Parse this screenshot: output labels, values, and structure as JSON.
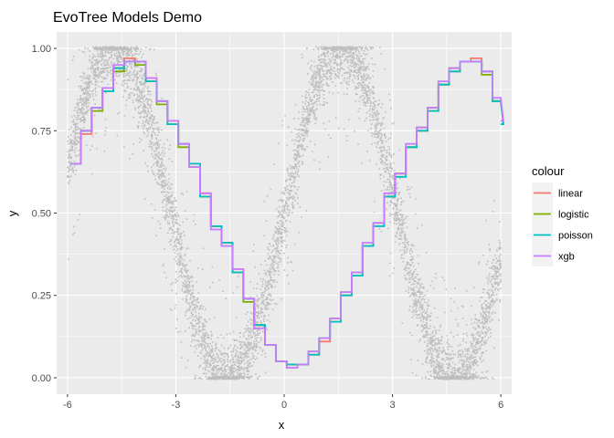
{
  "chart_data": {
    "type": "line",
    "title": "EvoTree Models Demo",
    "xlabel": "x",
    "ylabel": "y",
    "xlim": [
      -6.3,
      6.3
    ],
    "ylim": [
      -0.05,
      1.05
    ],
    "x_ticks": [
      -6,
      -3,
      0,
      3,
      6
    ],
    "x_tick_labels": [
      "-6",
      "-3",
      "0",
      "3",
      "6"
    ],
    "y_ticks": [
      0,
      0.25,
      0.5,
      0.75,
      1.0
    ],
    "y_tick_labels": [
      "0.00",
      "0.25",
      "0.50",
      "0.75",
      "1.00"
    ],
    "grid": true,
    "legend": {
      "title": "colour",
      "position": "right"
    },
    "scatter_color": "#bebebe",
    "panel_background": "#ebebeb",
    "x": [
      -5.93,
      -5.63,
      -5.33,
      -5.03,
      -4.73,
      -4.43,
      -4.13,
      -3.83,
      -3.53,
      -3.23,
      -2.93,
      -2.63,
      -2.33,
      -2.03,
      -1.73,
      -1.43,
      -1.13,
      -0.83,
      -0.53,
      -0.23,
      0.07,
      0.37,
      0.67,
      0.97,
      1.27,
      1.57,
      1.87,
      2.17,
      2.47,
      2.77,
      3.07,
      3.37,
      3.67,
      3.97,
      4.27,
      4.57,
      4.87,
      5.17,
      5.47,
      5.77,
      6.07
    ],
    "series": [
      {
        "name": "linear",
        "color": "#f8766d",
        "values": [
          0.65,
          0.74,
          0.82,
          0.88,
          0.94,
          0.97,
          0.96,
          0.91,
          0.84,
          0.78,
          0.71,
          0.65,
          0.56,
          0.46,
          0.41,
          0.33,
          0.24,
          0.16,
          0.1,
          0.05,
          0.03,
          0.04,
          0.07,
          0.11,
          0.17,
          0.25,
          0.31,
          0.4,
          0.46,
          0.55,
          0.62,
          0.7,
          0.75,
          0.81,
          0.89,
          0.93,
          0.96,
          0.97,
          0.93,
          0.84,
          0.78
        ]
      },
      {
        "name": "logistic",
        "color": "#7cae00",
        "values": [
          0.65,
          0.75,
          0.81,
          0.87,
          0.93,
          0.96,
          0.95,
          0.9,
          0.83,
          0.77,
          0.7,
          0.64,
          0.55,
          0.46,
          0.4,
          0.32,
          0.23,
          0.16,
          0.1,
          0.05,
          0.04,
          0.04,
          0.08,
          0.12,
          0.18,
          0.26,
          0.32,
          0.4,
          0.47,
          0.55,
          0.62,
          0.7,
          0.76,
          0.82,
          0.89,
          0.94,
          0.96,
          0.96,
          0.92,
          0.84,
          0.77
        ]
      },
      {
        "name": "poisson",
        "color": "#00bfc4",
        "values": [
          0.65,
          0.75,
          0.82,
          0.87,
          0.94,
          0.96,
          0.96,
          0.9,
          0.84,
          0.77,
          0.71,
          0.65,
          0.55,
          0.46,
          0.41,
          0.32,
          0.24,
          0.16,
          0.1,
          0.05,
          0.04,
          0.04,
          0.07,
          0.12,
          0.17,
          0.25,
          0.31,
          0.4,
          0.46,
          0.55,
          0.61,
          0.7,
          0.75,
          0.81,
          0.89,
          0.93,
          0.96,
          0.96,
          0.93,
          0.84,
          0.77
        ]
      },
      {
        "name": "xgb",
        "color": "#c77cff",
        "values": [
          0.65,
          0.75,
          0.82,
          0.88,
          0.95,
          0.96,
          0.96,
          0.91,
          0.84,
          0.78,
          0.71,
          0.64,
          0.56,
          0.45,
          0.4,
          0.33,
          0.24,
          0.15,
          0.1,
          0.05,
          0.03,
          0.04,
          0.08,
          0.12,
          0.18,
          0.26,
          0.32,
          0.41,
          0.47,
          0.56,
          0.62,
          0.71,
          0.76,
          0.82,
          0.9,
          0.94,
          0.96,
          0.96,
          0.93,
          0.85,
          0.78
        ]
      }
    ],
    "scatter_model": {
      "function": "sin(x)*0.5+0.5",
      "n_points": 6000
    }
  }
}
